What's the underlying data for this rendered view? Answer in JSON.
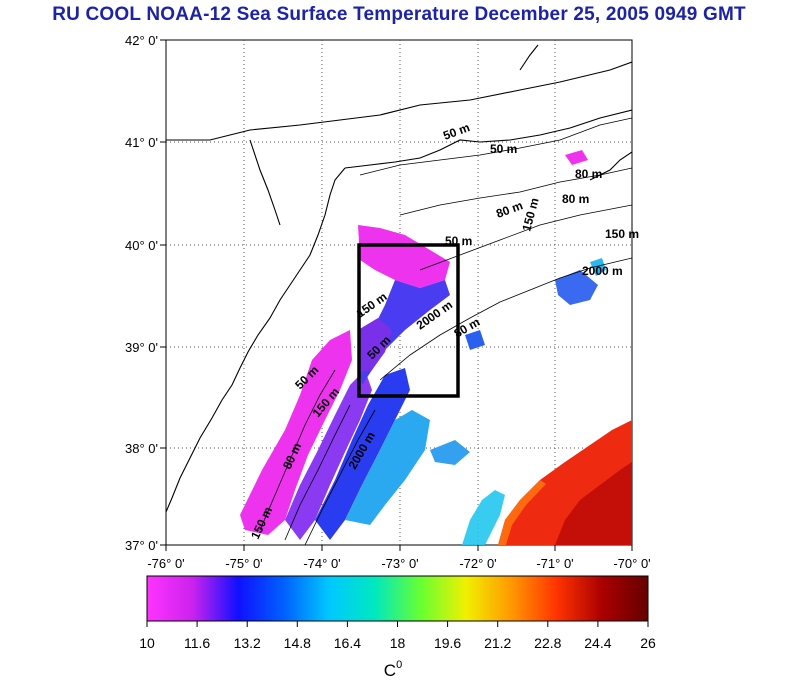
{
  "title": "RU COOL  NOAA-12 Sea Surface Temperature December 25, 2005 0949 GMT",
  "lat_ticks": [
    "42° 0'",
    "41° 0'",
    "40° 0'",
    "39° 0'",
    "38° 0'",
    "37° 0'"
  ],
  "lon_ticks": [
    "-76° 0'",
    "-75° 0'",
    "-74° 0'",
    "-73° 0'",
    "-72° 0'",
    "-71° 0'",
    "-70° 0'"
  ],
  "contour_labels": [
    "50 m",
    "50 m",
    "80 m",
    "80 m",
    "80 m",
    "150 m",
    "150 m",
    "2000 m",
    "50 m",
    "150 m",
    "2000 m",
    "80 m",
    "50 m",
    "150 m",
    "2000 m",
    "80 m",
    "150 m",
    "50 m"
  ],
  "colorbar": {
    "ticks": [
      "10",
      "11.6",
      "13.2",
      "14.8",
      "16.4",
      "18",
      "19.6",
      "21.2",
      "22.8",
      "24.4",
      "26"
    ],
    "unit": "C",
    "unit_sup": "0",
    "stops": [
      "#ff33ff",
      "#cc22ee",
      "#1010ff",
      "#0060ff",
      "#00c8ff",
      "#00e8c0",
      "#66ff33",
      "#f0f000",
      "#ff9900",
      "#ff3300",
      "#aa0000",
      "#660000"
    ]
  },
  "colors": {
    "title": "#1c23a8",
    "land": "#ffffff",
    "coast": "#000000"
  }
}
